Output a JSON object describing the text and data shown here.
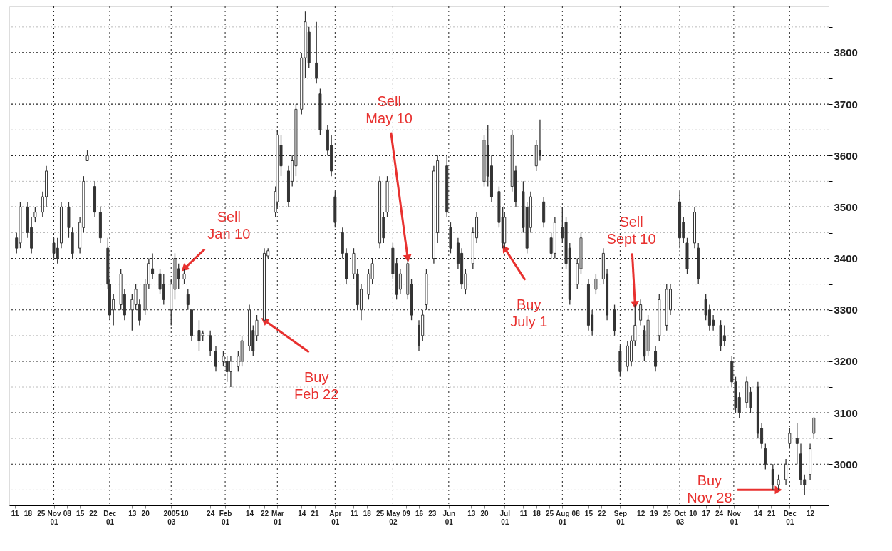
{
  "chart_data": {
    "type": "candlestick",
    "x": [
      "2004-10-12",
      "2004-10-14",
      "2004-10-18",
      "2004-10-20",
      "2004-10-22",
      "2004-10-26",
      "2004-10-28",
      "2004-11-01",
      "2004-11-03",
      "2004-11-05",
      "2004-11-09",
      "2004-11-11",
      "2004-11-15",
      "2004-11-17",
      "2004-11-19",
      "2004-11-23",
      "2004-11-26",
      "2004-11-30",
      "2004-12-01",
      "2004-12-03",
      "2004-12-07",
      "2004-12-09",
      "2004-12-13",
      "2004-12-15",
      "2004-12-17",
      "2004-12-20",
      "2004-12-22",
      "2004-12-24",
      "2004-12-28",
      "2004-12-30",
      "2005-01-03",
      "2005-01-05",
      "2005-01-07",
      "2005-01-10",
      "2005-01-12",
      "2005-01-14",
      "2005-01-18",
      "2005-01-20",
      "2005-01-24",
      "2005-01-27",
      "2005-01-31",
      "2005-02-02",
      "2005-02-04",
      "2005-02-08",
      "2005-02-10",
      "2005-02-14",
      "2005-02-16",
      "2005-02-18",
      "2005-02-22",
      "2005-02-24",
      "2005-02-28",
      "2005-03-01",
      "2005-03-03",
      "2005-03-07",
      "2005-03-09",
      "2005-03-11",
      "2005-03-14",
      "2005-03-16",
      "2005-03-18",
      "2005-03-22",
      "2005-03-24",
      "2005-03-28",
      "2005-03-30",
      "2005-04-01",
      "2005-04-05",
      "2005-04-07",
      "2005-04-11",
      "2005-04-13",
      "2005-04-15",
      "2005-04-19",
      "2005-04-21",
      "2005-04-25",
      "2005-04-27",
      "2005-04-29",
      "2005-05-02",
      "2005-05-04",
      "2005-05-06",
      "2005-05-10",
      "2005-05-12",
      "2005-05-16",
      "2005-05-18",
      "2005-05-20",
      "2005-05-24",
      "2005-05-26",
      "2005-05-31",
      "2005-06-02",
      "2005-06-06",
      "2005-06-08",
      "2005-06-10",
      "2005-06-14",
      "2005-06-16",
      "2005-06-20",
      "2005-06-22",
      "2005-06-24",
      "2005-06-28",
      "2005-06-30",
      "2005-07-01",
      "2005-07-05",
      "2005-07-07",
      "2005-07-11",
      "2005-07-13",
      "2005-07-15",
      "2005-07-18",
      "2005-07-20",
      "2005-07-22",
      "2005-07-26",
      "2005-07-28",
      "2005-08-01",
      "2005-08-03",
      "2005-08-05",
      "2005-08-09",
      "2005-08-11",
      "2005-08-15",
      "2005-08-17",
      "2005-08-19",
      "2005-08-23",
      "2005-08-25",
      "2005-08-29",
      "2005-09-01",
      "2005-09-05",
      "2005-09-07",
      "2005-09-09",
      "2005-09-12",
      "2005-09-14",
      "2005-09-16",
      "2005-09-20",
      "2005-09-22",
      "2005-09-26",
      "2005-09-28",
      "2005-10-03",
      "2005-10-05",
      "2005-10-07",
      "2005-10-11",
      "2005-10-13",
      "2005-10-17",
      "2005-10-19",
      "2005-10-21",
      "2005-10-25",
      "2005-10-27",
      "2005-10-31",
      "2005-11-02",
      "2005-11-04",
      "2005-11-08",
      "2005-11-10",
      "2005-11-14",
      "2005-11-16",
      "2005-11-18",
      "2005-11-22",
      "2005-11-25",
      "2005-11-29",
      "2005-12-01",
      "2005-12-05",
      "2005-12-07",
      "2005-12-09",
      "2005-12-12",
      "2005-12-14"
    ],
    "ohlc": [
      [
        3440,
        3450,
        3410,
        3420
      ],
      [
        3430,
        3510,
        3420,
        3500
      ],
      [
        3500,
        3510,
        3440,
        3450
      ],
      [
        3460,
        3480,
        3410,
        3420
      ],
      [
        3480,
        3500,
        3470,
        3490
      ],
      [
        3490,
        3530,
        3480,
        3520
      ],
      [
        3520,
        3580,
        3500,
        3570
      ],
      [
        3430,
        3440,
        3400,
        3410
      ],
      [
        3420,
        3440,
        3390,
        3400
      ],
      [
        3430,
        3510,
        3420,
        3500
      ],
      [
        3500,
        3510,
        3440,
        3460
      ],
      [
        3450,
        3460,
        3400,
        3410
      ],
      [
        3420,
        3480,
        3410,
        3470
      ],
      [
        3460,
        3560,
        3450,
        3550
      ],
      [
        3590,
        3610,
        3590,
        3600
      ],
      [
        3540,
        3550,
        3480,
        3490
      ],
      [
        3490,
        3500,
        3430,
        3440
      ],
      [
        3420,
        3440,
        3340,
        3350
      ],
      [
        3350,
        3360,
        3280,
        3290
      ],
      [
        3300,
        3330,
        3270,
        3320
      ],
      [
        3310,
        3380,
        3300,
        3370
      ],
      [
        3330,
        3340,
        3280,
        3290
      ],
      [
        3300,
        3330,
        3260,
        3320
      ],
      [
        3310,
        3350,
        3300,
        3340
      ],
      [
        3310,
        3320,
        3270,
        3280
      ],
      [
        3300,
        3360,
        3290,
        3350
      ],
      [
        3350,
        3400,
        3340,
        3390
      ],
      [
        3380,
        3410,
        3360,
        3370
      ],
      [
        3370,
        3380,
        3330,
        3340
      ],
      [
        3350,
        3370,
        3310,
        3320
      ],
      [
        3300,
        3360,
        3270,
        3350
      ],
      [
        3340,
        3410,
        3320,
        3400
      ],
      [
        3380,
        3390,
        3340,
        3360
      ],
      [
        3360,
        3380,
        3350,
        3370
      ],
      [
        3330,
        3340,
        3300,
        3310
      ],
      [
        3300,
        3300,
        3240,
        3250
      ],
      [
        3260,
        3280,
        3220,
        3240
      ],
      [
        3250,
        3260,
        3240,
        3255
      ],
      [
        3250,
        3260,
        3210,
        3220
      ],
      [
        3220,
        3230,
        3180,
        3190
      ],
      [
        3200,
        3220,
        3190,
        3210
      ],
      [
        3200,
        3210,
        3160,
        3180
      ],
      [
        3180,
        3210,
        3150,
        3200
      ],
      [
        3190,
        3220,
        3180,
        3210
      ],
      [
        3200,
        3250,
        3190,
        3240
      ],
      [
        3230,
        3310,
        3220,
        3300
      ],
      [
        3260,
        3270,
        3210,
        3220
      ],
      [
        3250,
        3290,
        3240,
        3280
      ],
      [
        3280,
        3420,
        3280,
        3410
      ],
      [
        3405,
        3420,
        3400,
        3415
      ],
      [
        3490,
        3540,
        3480,
        3530
      ],
      [
        3510,
        3650,
        3500,
        3640
      ],
      [
        3620,
        3640,
        3560,
        3580
      ],
      [
        3570,
        3580,
        3500,
        3510
      ],
      [
        3550,
        3600,
        3540,
        3590
      ],
      [
        3580,
        3700,
        3560,
        3690
      ],
      [
        3690,
        3800,
        3680,
        3790
      ],
      [
        3790,
        3880,
        3750,
        3860
      ],
      [
        3840,
        3850,
        3770,
        3780
      ],
      [
        3780,
        3860,
        3740,
        3750
      ],
      [
        3720,
        3730,
        3640,
        3650
      ],
      [
        3650,
        3660,
        3600,
        3610
      ],
      [
        3620,
        3640,
        3560,
        3570
      ],
      [
        3520,
        3530,
        3460,
        3470
      ],
      [
        3450,
        3460,
        3400,
        3410
      ],
      [
        3410,
        3420,
        3350,
        3360
      ],
      [
        3370,
        3420,
        3360,
        3410
      ],
      [
        3370,
        3380,
        3300,
        3310
      ],
      [
        3300,
        3350,
        3280,
        3340
      ],
      [
        3330,
        3380,
        3320,
        3370
      ],
      [
        3360,
        3400,
        3350,
        3390
      ],
      [
        3430,
        3560,
        3420,
        3550
      ],
      [
        3480,
        3490,
        3430,
        3440
      ],
      [
        3490,
        3560,
        3480,
        3550
      ],
      [
        3420,
        3430,
        3360,
        3370
      ],
      [
        3390,
        3400,
        3320,
        3330
      ],
      [
        3340,
        3380,
        3330,
        3370
      ],
      [
        3330,
        3400,
        3320,
        3390
      ],
      [
        3350,
        3360,
        3280,
        3290
      ],
      [
        3270,
        3280,
        3220,
        3230
      ],
      [
        3250,
        3300,
        3240,
        3290
      ],
      [
        3310,
        3380,
        3300,
        3370
      ],
      [
        3400,
        3580,
        3390,
        3570
      ],
      [
        3450,
        3600,
        3430,
        3590
      ],
      [
        3580,
        3600,
        3480,
        3490
      ],
      [
        3460,
        3470,
        3410,
        3420
      ],
      [
        3430,
        3440,
        3380,
        3390
      ],
      [
        3410,
        3420,
        3340,
        3350
      ],
      [
        3340,
        3380,
        3330,
        3370
      ],
      [
        3390,
        3460,
        3380,
        3450
      ],
      [
        3440,
        3490,
        3430,
        3480
      ],
      [
        3550,
        3640,
        3540,
        3630
      ],
      [
        3620,
        3660,
        3540,
        3560
      ],
      [
        3580,
        3600,
        3510,
        3520
      ],
      [
        3530,
        3540,
        3460,
        3470
      ],
      [
        3480,
        3500,
        3420,
        3430
      ],
      [
        3430,
        3490,
        3420,
        3480
      ],
      [
        3540,
        3650,
        3530,
        3640
      ],
      [
        3570,
        3580,
        3500,
        3510
      ],
      [
        3530,
        3550,
        3450,
        3460
      ],
      [
        3500,
        3510,
        3410,
        3420
      ],
      [
        3460,
        3530,
        3450,
        3520
      ],
      [
        3580,
        3630,
        3570,
        3620
      ],
      [
        3610,
        3670,
        3590,
        3600
      ],
      [
        3510,
        3520,
        3460,
        3470
      ],
      [
        3440,
        3450,
        3400,
        3410
      ],
      [
        3410,
        3480,
        3400,
        3470
      ],
      [
        3460,
        3500,
        3430,
        3440
      ],
      [
        3470,
        3480,
        3380,
        3390
      ],
      [
        3420,
        3430,
        3310,
        3320
      ],
      [
        3350,
        3400,
        3340,
        3390
      ],
      [
        3380,
        3450,
        3370,
        3440
      ],
      [
        3350,
        3360,
        3260,
        3270
      ],
      [
        3290,
        3300,
        3250,
        3260
      ],
      [
        3340,
        3370,
        3330,
        3360
      ],
      [
        3360,
        3420,
        3350,
        3410
      ],
      [
        3370,
        3380,
        3280,
        3290
      ],
      [
        3300,
        3310,
        3250,
        3260
      ],
      [
        3220,
        3230,
        3170,
        3180
      ],
      [
        3190,
        3240,
        3180,
        3230
      ],
      [
        3200,
        3250,
        3190,
        3240
      ],
      [
        3240,
        3310,
        3230,
        3270
      ],
      [
        3280,
        3320,
        3270,
        3310
      ],
      [
        3260,
        3270,
        3200,
        3210
      ],
      [
        3220,
        3290,
        3210,
        3280
      ],
      [
        3220,
        3230,
        3180,
        3190
      ],
      [
        3250,
        3330,
        3240,
        3320
      ],
      [
        3270,
        3350,
        3260,
        3340
      ],
      [
        3300,
        3350,
        3290,
        3340
      ],
      [
        3510,
        3530,
        3420,
        3440
      ],
      [
        3470,
        3480,
        3430,
        3440
      ],
      [
        3430,
        3440,
        3370,
        3380
      ],
      [
        3430,
        3500,
        3420,
        3490
      ],
      [
        3420,
        3430,
        3350,
        3360
      ],
      [
        3320,
        3330,
        3280,
        3290
      ],
      [
        3300,
        3310,
        3260,
        3270
      ],
      [
        3280,
        3290,
        3260,
        3270
      ],
      [
        3270,
        3280,
        3220,
        3230
      ],
      [
        3250,
        3270,
        3230,
        3240
      ],
      [
        3200,
        3210,
        3150,
        3160
      ],
      [
        3160,
        3170,
        3100,
        3110
      ],
      [
        3130,
        3140,
        3090,
        3100
      ],
      [
        3120,
        3170,
        3110,
        3160
      ],
      [
        3140,
        3150,
        3100,
        3110
      ],
      [
        3150,
        3160,
        3050,
        3060
      ],
      [
        3070,
        3080,
        3030,
        3040
      ],
      [
        3030,
        3040,
        2990,
        3000
      ],
      [
        2990,
        3000,
        2950,
        2960
      ],
      [
        2960,
        2980,
        2950,
        2970
      ],
      [
        2970,
        3010,
        2960,
        3000
      ],
      [
        3040,
        3070,
        3030,
        3060
      ],
      [
        3050,
        3080,
        3000,
        3040
      ],
      [
        3020,
        3040,
        2960,
        2970
      ],
      [
        2970,
        2980,
        2940,
        2960
      ],
      [
        2980,
        3040,
        2970,
        3030
      ],
      [
        3060,
        3090,
        3050,
        3090
      ]
    ],
    "color": "#333333",
    "xlim": [
      "2004-10-10",
      "2005-12-20"
    ],
    "xticks": [
      {
        "value": "2004-10-11",
        "label": "11"
      },
      {
        "value": "2004-10-18",
        "label": "18"
      },
      {
        "value": "2004-10-25",
        "label": "25"
      },
      {
        "value": "2004-11-01",
        "label": "Nov\n01"
      },
      {
        "value": "2004-11-08",
        "label": "08"
      },
      {
        "value": "2004-11-15",
        "label": "15"
      },
      {
        "value": "2004-11-22",
        "label": "22"
      },
      {
        "value": "2004-12-01",
        "label": "Dec\n01"
      },
      {
        "value": "2004-12-13",
        "label": "13"
      },
      {
        "value": "2004-12-20",
        "label": "20"
      },
      {
        "value": "2005-01-03",
        "label": "2005\n03"
      },
      {
        "value": "2005-01-10",
        "label": "10"
      },
      {
        "value": "2005-01-24",
        "label": "24"
      },
      {
        "value": "2005-02-01",
        "label": "Feb\n01"
      },
      {
        "value": "2005-02-14",
        "label": "14"
      },
      {
        "value": "2005-02-22",
        "label": "22"
      },
      {
        "value": "2005-03-01",
        "label": "Mar\n01"
      },
      {
        "value": "2005-03-14",
        "label": "14"
      },
      {
        "value": "2005-03-21",
        "label": "21"
      },
      {
        "value": "2005-04-01",
        "label": "Apr\n01"
      },
      {
        "value": "2005-04-11",
        "label": "11"
      },
      {
        "value": "2005-04-18",
        "label": "18"
      },
      {
        "value": "2005-04-25",
        "label": "25"
      },
      {
        "value": "2005-05-02",
        "label": "May\n02"
      },
      {
        "value": "2005-05-09",
        "label": "09"
      },
      {
        "value": "2005-05-16",
        "label": "16"
      },
      {
        "value": "2005-05-23",
        "label": "23"
      },
      {
        "value": "2005-06-01",
        "label": "Jun\n01"
      },
      {
        "value": "2005-06-13",
        "label": "13"
      },
      {
        "value": "2005-06-20",
        "label": "20"
      },
      {
        "value": "2005-07-01",
        "label": "Jul\n01"
      },
      {
        "value": "2005-07-11",
        "label": "11"
      },
      {
        "value": "2005-07-18",
        "label": "18"
      },
      {
        "value": "2005-07-25",
        "label": "25"
      },
      {
        "value": "2005-08-01",
        "label": "Aug\n01"
      },
      {
        "value": "2005-08-08",
        "label": "08"
      },
      {
        "value": "2005-08-15",
        "label": "15"
      },
      {
        "value": "2005-08-22",
        "label": "22"
      },
      {
        "value": "2005-09-01",
        "label": "Sep\n01"
      },
      {
        "value": "2005-09-12",
        "label": "12"
      },
      {
        "value": "2005-09-19",
        "label": "19"
      },
      {
        "value": "2005-09-26",
        "label": "26"
      },
      {
        "value": "2005-10-03",
        "label": "Oct\n03"
      },
      {
        "value": "2005-10-10",
        "label": "10"
      },
      {
        "value": "2005-10-17",
        "label": "17"
      },
      {
        "value": "2005-10-24",
        "label": "24"
      },
      {
        "value": "2005-11-01",
        "label": "Nov\n01"
      },
      {
        "value": "2005-11-14",
        "label": "14"
      },
      {
        "value": "2005-11-21",
        "label": "21"
      },
      {
        "value": "2005-12-01",
        "label": "Dec\n01"
      },
      {
        "value": "2005-12-12",
        "label": "12"
      }
    ],
    "ylim": [
      2920,
      3890
    ],
    "yticks": [
      {
        "value": 2950,
        "label": null
      },
      3000,
      {
        "value": 3050,
        "label": null
      },
      3100,
      {
        "value": 3150,
        "label": null
      },
      3200,
      {
        "value": 3250,
        "label": null
      },
      3300,
      {
        "value": 3350,
        "label": null
      },
      3400,
      {
        "value": 3450,
        "label": null
      },
      3500,
      {
        "value": 3550,
        "label": null
      },
      3600,
      {
        "value": 3650,
        "label": null
      },
      3700,
      {
        "value": 3750,
        "label": null
      },
      3800,
      {
        "value": 3850,
        "label": null
      }
    ],
    "grid": true,
    "annotations": [
      {
        "text": "Sell\nJan 10",
        "x": "2005-01-10",
        "y": 3380
      },
      {
        "text": "Buy\nFeb 22",
        "x": "2005-02-22",
        "y": 3280
      },
      {
        "text": "Sell\nMay 10",
        "x": "2005-05-10",
        "y": 3400
      },
      {
        "text": "Buy\nJuly 1",
        "x": "2005-07-01",
        "y": 3420
      },
      {
        "text": "Sell\nSept 10",
        "x": "2005-09-09",
        "y": 3310
      },
      {
        "text": "Buy\nNov 28",
        "x": "2005-11-25",
        "y": 2950
      }
    ]
  }
}
